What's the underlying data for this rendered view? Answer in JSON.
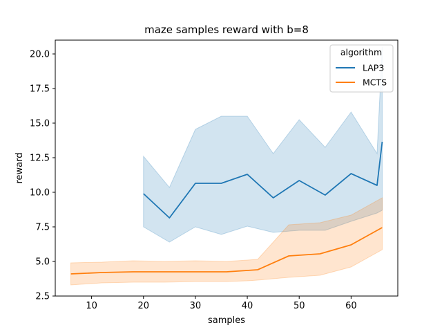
{
  "chart_data": {
    "type": "line",
    "title": "maze samples reward with b=8",
    "xlabel": "samples",
    "ylabel": "reward",
    "xlim": [
      3,
      69
    ],
    "ylim": [
      2.5,
      21.0
    ],
    "xticks": [
      10,
      20,
      30,
      40,
      50,
      60
    ],
    "yticks": [
      2.5,
      5.0,
      7.5,
      10.0,
      12.5,
      15.0,
      17.5,
      20.0
    ],
    "ytick_labels": [
      "2.5",
      "5.0",
      "7.5",
      "10.0",
      "12.5",
      "15.0",
      "17.5",
      "20.0"
    ],
    "grid": false,
    "legend": {
      "title": "algorithm",
      "placement": "top-right"
    },
    "series": [
      {
        "name": "LAP3",
        "color": "#1f77b4",
        "x": [
          20,
          25,
          30,
          35,
          40,
          45,
          50,
          55,
          60,
          65,
          66
        ],
        "y": [
          9.9,
          8.15,
          10.65,
          10.65,
          11.3,
          9.6,
          10.85,
          9.8,
          11.35,
          10.5,
          13.65
        ],
        "ci_low": [
          7.5,
          6.4,
          7.5,
          6.95,
          7.55,
          7.1,
          7.25,
          7.25,
          7.9,
          8.5,
          8.7
        ],
        "ci_high": [
          12.6,
          10.35,
          14.55,
          15.5,
          15.5,
          12.8,
          15.25,
          13.25,
          15.8,
          12.8,
          20.5
        ]
      },
      {
        "name": "MCTS",
        "color": "#ff7f0e",
        "x": [
          6,
          12,
          18,
          24,
          30,
          36,
          40,
          42,
          48,
          54,
          60,
          66
        ],
        "y": [
          4.1,
          4.2,
          4.25,
          4.25,
          4.25,
          4.25,
          4.35,
          4.4,
          5.4,
          5.55,
          6.2,
          7.45
        ],
        "ci_low": [
          3.3,
          3.45,
          3.5,
          3.5,
          3.55,
          3.55,
          3.6,
          3.65,
          3.85,
          4.0,
          4.6,
          5.85
        ],
        "ci_high": [
          4.9,
          4.95,
          5.05,
          5.0,
          5.05,
          5.0,
          5.1,
          5.15,
          7.65,
          7.8,
          8.35,
          9.6
        ]
      }
    ]
  }
}
